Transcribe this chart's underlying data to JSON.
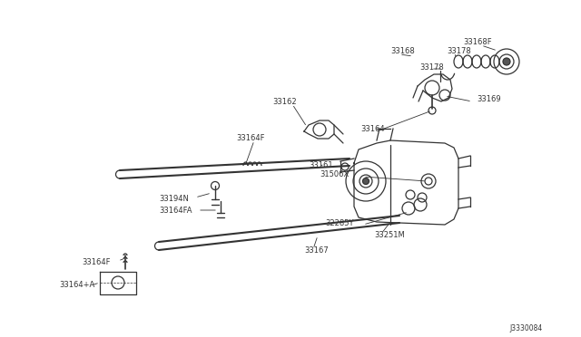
{
  "bg_color": "#ffffff",
  "line_color": "#333333",
  "text_color": "#333333",
  "diagram_id": "J3330084",
  "figsize": [
    6.4,
    3.72
  ],
  "dpi": 100,
  "xlim": [
    0,
    640
  ],
  "ylim": [
    0,
    372
  ]
}
